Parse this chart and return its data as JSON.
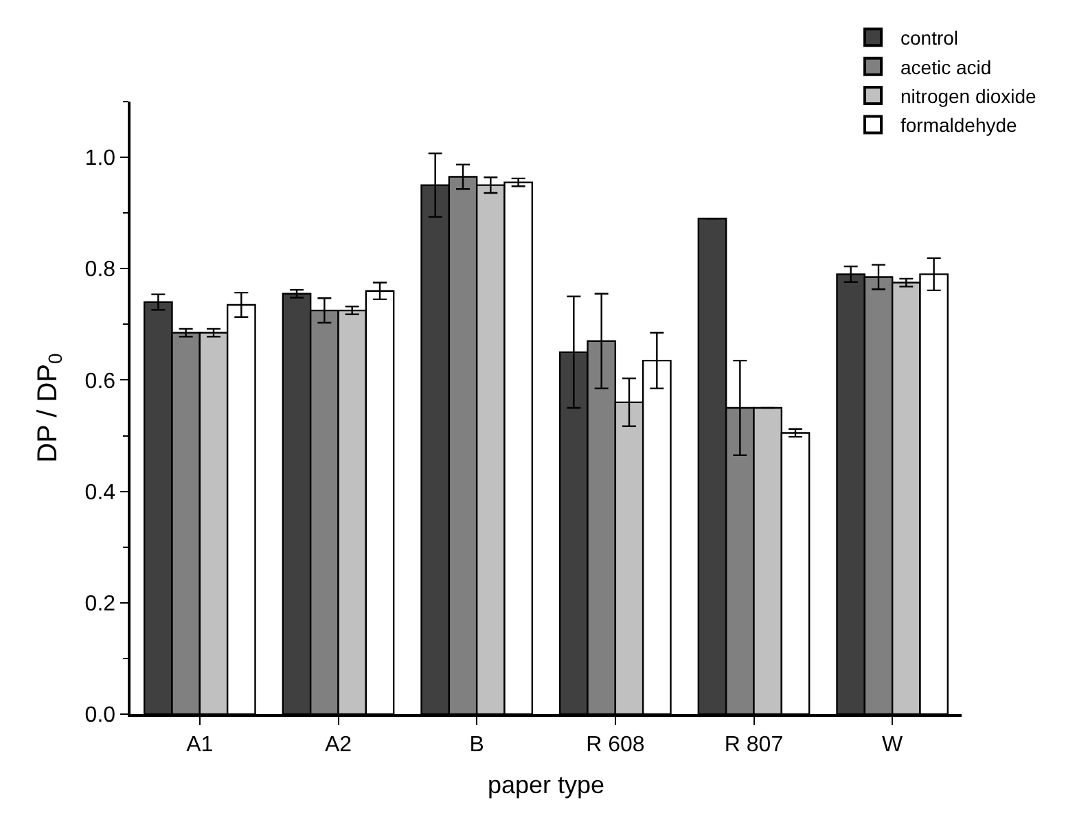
{
  "chart_data": {
    "type": "bar",
    "xlabel": "paper type",
    "ylabel": "DP / DP$_{0}$",
    "categories": [
      "A1",
      "A2",
      "B",
      "R 608",
      "R 807",
      "W"
    ],
    "series": [
      {
        "name": "control",
        "color": "#404040",
        "values": [
          0.74,
          0.755,
          0.95,
          0.65,
          0.89,
          0.79
        ],
        "errors": [
          0.014,
          0.007,
          0.057,
          0.1,
          null,
          0.014
        ]
      },
      {
        "name": "acetic acid",
        "color": "#808080",
        "values": [
          0.685,
          0.725,
          0.965,
          0.67,
          0.55,
          0.785
        ],
        "errors": [
          0.007,
          0.022,
          0.022,
          0.085,
          0.085,
          0.022
        ]
      },
      {
        "name": "nitrogen dioxide",
        "color": "#c0c0c0",
        "values": [
          0.685,
          0.725,
          0.95,
          0.56,
          0.55,
          0.775
        ],
        "errors": [
          0.007,
          0.007,
          0.014,
          0.043,
          null,
          0.007
        ]
      },
      {
        "name": "formaldehyde",
        "color": "#ffffff",
        "values": [
          0.735,
          0.76,
          0.955,
          0.635,
          0.505,
          0.79
        ],
        "errors": [
          0.022,
          0.015,
          0.007,
          0.05,
          0.007,
          0.029
        ]
      }
    ],
    "ylim": [
      0,
      1.1
    ],
    "yticks": [
      {
        "value": 0.0,
        "label": "0.0"
      },
      0.2,
      0.4,
      0.6,
      0.8,
      {
        "value": 1.0,
        "label": "1.0"
      }
    ],
    "legend": "top right"
  }
}
